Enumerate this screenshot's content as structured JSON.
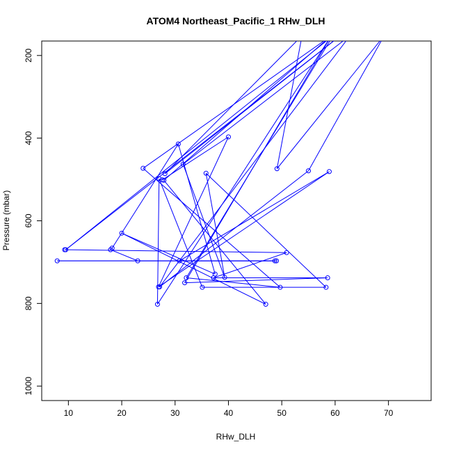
{
  "chart_data": {
    "type": "line",
    "title": "ATOM4 Northeast_Pacific_1 RHw_DLH",
    "xlabel": "RHw_DLH",
    "ylabel": "Pressure (mbar)",
    "xlim": [
      5,
      78
    ],
    "ylim": [
      1035,
      165
    ],
    "y_inverted": true,
    "x_ticks": [
      10,
      20,
      30,
      40,
      50,
      60,
      70
    ],
    "y_ticks": [
      200,
      400,
      600,
      800,
      1000
    ],
    "series_color": "#0000ff",
    "marker": "open-circle",
    "series": [
      {
        "points": [
          [
            9.3,
            670
          ],
          [
            50.9,
            677
          ],
          [
            37.2,
            738
          ],
          [
            58.6,
            738
          ],
          [
            31.8,
            750
          ],
          [
            59.3,
            152
          ],
          [
            26.7,
            802
          ],
          [
            27.0,
            498
          ],
          [
            35.1,
            761
          ],
          [
            58.3,
            761
          ],
          [
            35.8,
            485
          ],
          [
            39.3,
            737
          ],
          [
            31.5,
            463
          ],
          [
            62.8,
            152
          ],
          [
            27.1,
            760
          ],
          [
            55.0,
            479
          ],
          [
            69.2,
            152
          ],
          [
            49.1,
            474
          ],
          [
            53.8,
            152
          ],
          [
            28.1,
            486
          ],
          [
            61.0,
            152
          ],
          [
            9.5,
            670
          ],
          [
            59.6,
            152
          ],
          [
            32.1,
            738
          ],
          [
            49.7,
            761
          ],
          [
            24.0,
            473
          ],
          [
            59.3,
            152
          ],
          [
            27.9,
            502
          ],
          [
            47.0,
            802
          ],
          [
            20.0,
            630
          ],
          [
            37.5,
            729
          ],
          [
            30.6,
            414
          ],
          [
            18.2,
            666
          ],
          [
            17.9,
            670
          ],
          [
            23.0,
            697
          ],
          [
            48.7,
            697
          ],
          [
            7.9,
            697
          ],
          [
            49.0,
            697
          ],
          [
            30.8,
            697
          ],
          [
            58.9,
            481
          ],
          [
            26.9,
            760
          ],
          [
            40.0,
            397
          ],
          [
            27.6,
            501
          ]
        ]
      }
    ]
  }
}
